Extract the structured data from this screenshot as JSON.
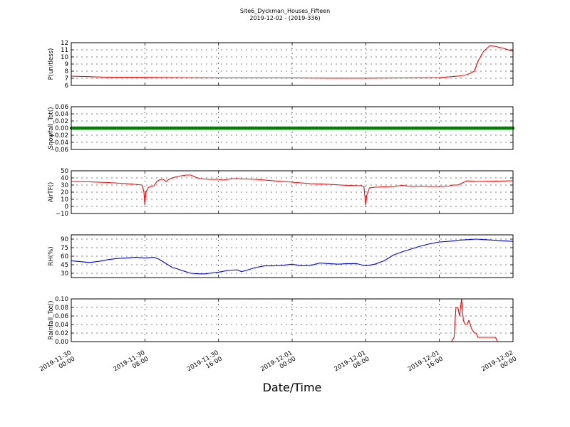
{
  "figure": {
    "title": "Site6_Dyckman_Houses_Fifteen",
    "subtitle": "2019-12-02 - (2019-336)",
    "xlabel": "Date/Time"
  },
  "chart_data": [
    {
      "type": "line",
      "ylabel": "P(unitless)",
      "ylim": [
        6,
        12
      ],
      "yticks": [
        6,
        7,
        8,
        9,
        10,
        11,
        12
      ],
      "ytick_labels": [
        "6",
        "7",
        "8",
        "9",
        "10",
        "11",
        "12"
      ],
      "grid": true,
      "color": "#ff0000",
      "x_hours": [
        0,
        4,
        8,
        12,
        16,
        20,
        24,
        28,
        32,
        36,
        40,
        42,
        43,
        43.8,
        44.2,
        44.8,
        45.5,
        46,
        46.5,
        47,
        47.5,
        48
      ],
      "values": [
        7.3,
        7.15,
        7.15,
        7.1,
        7.05,
        7.05,
        7.05,
        7.02,
        7.02,
        7.05,
        7.1,
        7.3,
        7.5,
        8.0,
        9.4,
        10.8,
        11.6,
        11.5,
        11.35,
        11.2,
        11.0,
        10.8
      ]
    },
    {
      "type": "line",
      "ylabel": "Snowfall_Tot()",
      "ylim": [
        -0.06,
        0.06
      ],
      "yticks": [
        -0.06,
        -0.04,
        -0.02,
        0.0,
        0.02,
        0.04,
        0.06
      ],
      "ytick_labels": [
        "−0.06",
        "−0.04",
        "−0.02",
        "0.00",
        "0.02",
        "0.04",
        "0.06"
      ],
      "grid": true,
      "color": "#008000",
      "marker": "dot",
      "x_hours": [
        0,
        48
      ],
      "values": [
        0,
        0
      ]
    },
    {
      "type": "line",
      "ylabel": "AirTF()",
      "ylim": [
        -10,
        50
      ],
      "yticks": [
        -10,
        0,
        10,
        20,
        30,
        40,
        50
      ],
      "ytick_labels": [
        "−10",
        "0",
        "10",
        "20",
        "30",
        "40",
        "50"
      ],
      "grid": true,
      "color": "#ff0000",
      "x_hours": [
        0,
        2,
        4,
        6,
        7.7,
        7.9,
        8.0,
        8.1,
        8.4,
        9,
        9.3,
        9.7,
        10,
        10.3,
        10.6,
        11,
        11.5,
        12,
        12.5,
        13,
        13.5,
        14,
        15,
        16,
        16.5,
        17,
        17.5,
        18,
        20,
        22,
        24,
        26,
        28,
        30,
        31.5,
        31.8,
        31.9,
        32.0,
        32.1,
        32.4,
        33,
        34,
        35,
        36,
        37,
        38,
        39,
        40,
        41,
        41.5,
        42,
        42.5,
        43,
        44,
        46,
        48
      ],
      "values": [
        35,
        34.5,
        33.5,
        32,
        30,
        20,
        2,
        20,
        27,
        29,
        35,
        38,
        38,
        35,
        38,
        40,
        42,
        43,
        44,
        44,
        41,
        39,
        38,
        38,
        37,
        38,
        39,
        39,
        38,
        36,
        34,
        32,
        31,
        29.5,
        29,
        28,
        15,
        2,
        15,
        26,
        27,
        27.5,
        28,
        29.5,
        28,
        28.5,
        28,
        28,
        28.5,
        30,
        30,
        33,
        36,
        35,
        35.5,
        36
      ]
    },
    {
      "type": "line",
      "ylabel": "RH(%)",
      "ylim": [
        22.5,
        97.5
      ],
      "yticks": [
        30,
        45,
        60,
        75,
        90
      ],
      "ytick_labels": [
        "30",
        "45",
        "60",
        "75",
        "90"
      ],
      "grid": true,
      "color": "#0000ff",
      "x_hours": [
        0,
        2,
        3,
        4,
        5,
        6,
        7,
        8,
        9,
        9.5,
        10,
        10.5,
        11,
        11.5,
        12,
        13,
        14,
        14.5,
        15,
        16,
        17,
        18,
        18.5,
        19,
        20,
        21,
        22,
        23,
        24,
        25,
        26,
        27,
        28,
        29,
        30,
        31,
        31.5,
        32,
        33,
        34,
        35,
        36,
        37,
        38,
        39,
        40,
        41,
        42,
        43,
        44,
        45,
        46,
        47,
        48
      ],
      "values": [
        52,
        49,
        51,
        54,
        56,
        57,
        58,
        57,
        58,
        55,
        50,
        45,
        40,
        38,
        35,
        30,
        29,
        29,
        30,
        32,
        35,
        36,
        33,
        35,
        40,
        43,
        43,
        44,
        46,
        43,
        44,
        48,
        47,
        46,
        47,
        47,
        45,
        43,
        46,
        52,
        62,
        68,
        73,
        78,
        82,
        85,
        86,
        88,
        89,
        90,
        89,
        88,
        87,
        86
      ]
    },
    {
      "type": "line",
      "ylabel": "Rainfall_Tot()",
      "ylim": [
        0.0,
        0.1
      ],
      "yticks": [
        0.0,
        0.02,
        0.04,
        0.06,
        0.08,
        0.1
      ],
      "ytick_labels": [
        "0.00",
        "0.02",
        "0.04",
        "0.06",
        "0.08",
        "0.10"
      ],
      "grid": true,
      "color": "#ff0000",
      "x_hours": [
        0,
        41.3,
        41.6,
        41.8,
        42.0,
        42.2,
        42.4,
        42.6,
        42.8,
        43.0,
        43.2,
        43.5,
        43.8,
        44.0,
        44.2,
        44.6,
        45.0,
        45.3,
        45.6,
        46.1,
        46.3,
        46.6,
        48
      ],
      "values": [
        0,
        0,
        0.01,
        0.08,
        0.08,
        0.06,
        0.1,
        0.05,
        0.04,
        0.04,
        0.05,
        0.03,
        0.02,
        0.02,
        0.01,
        0.01,
        0.01,
        0.01,
        0.01,
        0.01,
        0.0,
        0.0,
        0.0
      ]
    }
  ],
  "x_axis": {
    "xlim_hours": [
      0,
      48
    ],
    "ticks_hours": [
      0,
      8,
      16,
      24,
      32,
      40,
      48
    ],
    "tick_labels": [
      [
        "2019-11-30",
        "00:00"
      ],
      [
        "2019-11-30",
        "08:00"
      ],
      [
        "2019-11-30",
        "16:00"
      ],
      [
        "2019-12-01",
        "00:00"
      ],
      [
        "2019-12-01",
        "08:00"
      ],
      [
        "2019-12-01",
        "16:00"
      ],
      [
        "2019-12-02",
        "00:00"
      ]
    ]
  }
}
